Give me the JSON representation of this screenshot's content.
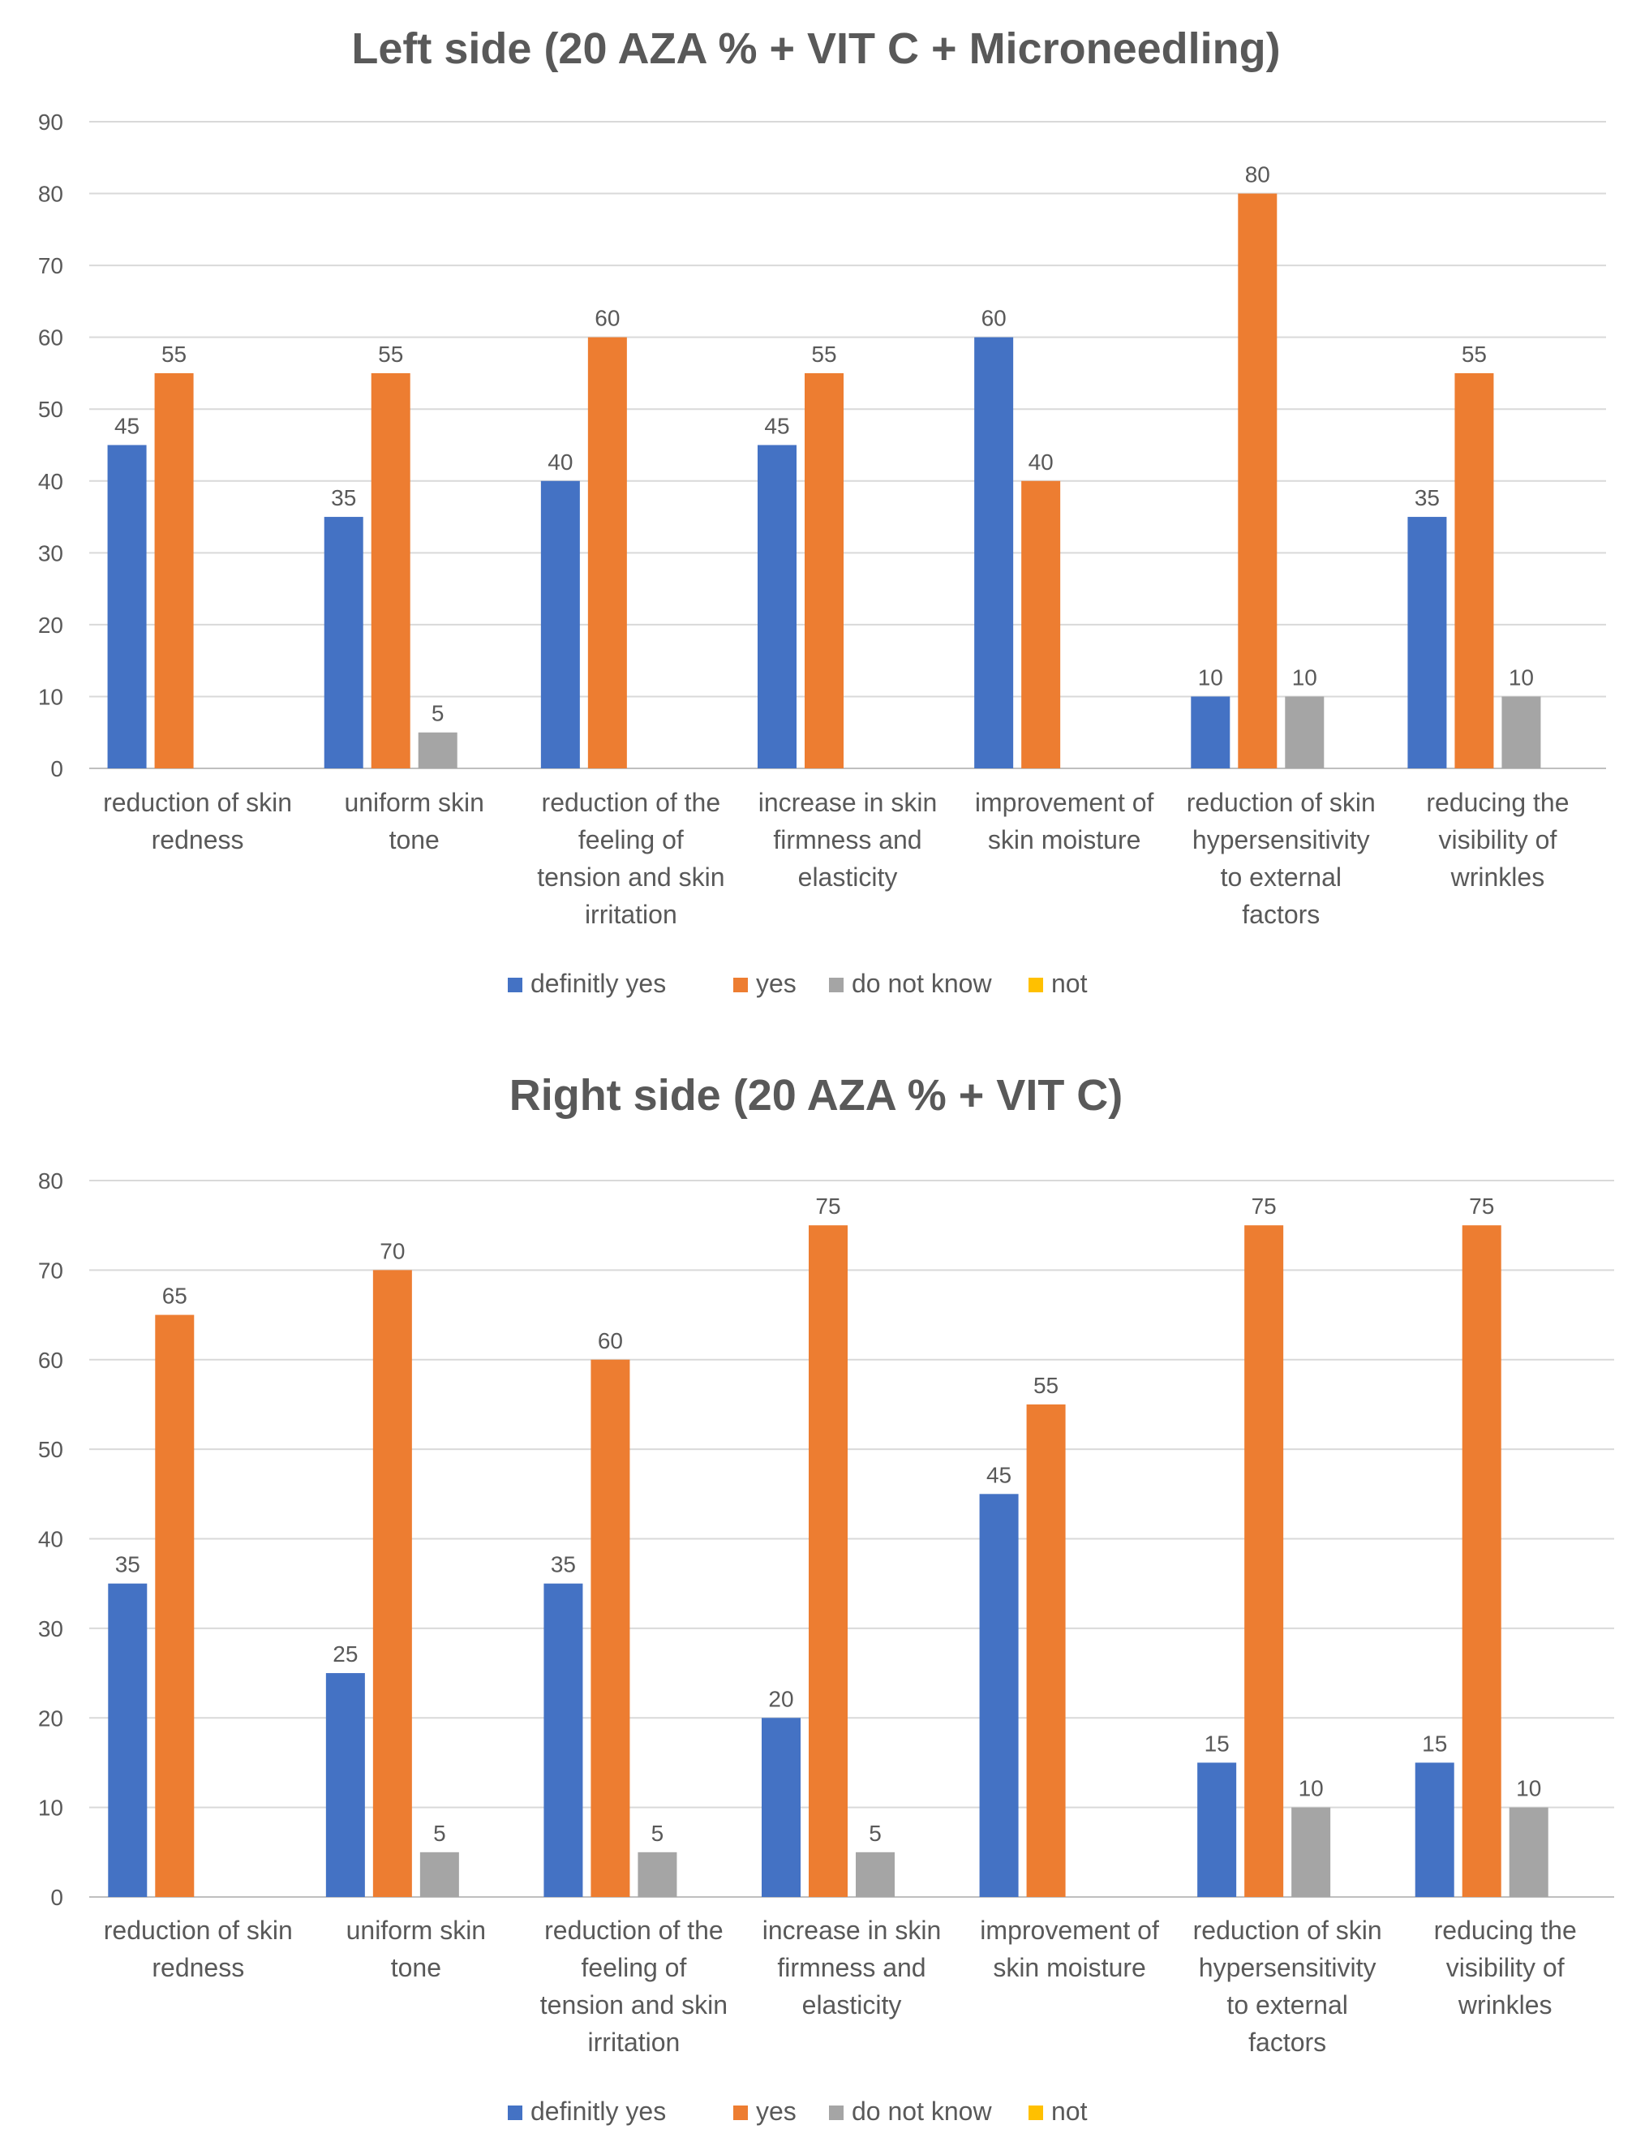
{
  "chart_data": [
    {
      "type": "bar",
      "title": "Left side (20 AZA % + VIT C + Microneedling)",
      "xlabel": "",
      "ylabel": "",
      "ylim": [
        0,
        90
      ],
      "yticks": [
        0,
        10,
        20,
        30,
        40,
        50,
        60,
        70,
        80,
        90
      ],
      "grid": true,
      "legend_position": "bottom",
      "categories": [
        [
          "reduction of skin",
          "redness"
        ],
        [
          "uniform skin",
          "tone"
        ],
        [
          "reduction of the",
          "feeling of",
          "tension and skin",
          "irritation"
        ],
        [
          "increase in  skin",
          "firmness and",
          "elasticity"
        ],
        [
          "improvement of",
          "skin moisture"
        ],
        [
          "reduction of skin",
          "hypersensitivity",
          "to external",
          "factors"
        ],
        [
          "reducing the",
          "visibility of",
          "wrinkles"
        ]
      ],
      "series": [
        {
          "name": "definitly yes",
          "color": "#4472C4",
          "values": [
            45,
            35,
            40,
            45,
            60,
            10,
            35
          ]
        },
        {
          "name": "yes",
          "color": "#ED7D31",
          "values": [
            55,
            55,
            60,
            55,
            40,
            80,
            55
          ]
        },
        {
          "name": "do not know",
          "color": "#A5A5A5",
          "values": [
            0,
            5,
            0,
            0,
            0,
            10,
            10
          ]
        },
        {
          "name": "not",
          "color": "#FFC000",
          "values": [
            0,
            0,
            0,
            0,
            0,
            0,
            0
          ]
        }
      ]
    },
    {
      "type": "bar",
      "title": "Right side (20 AZA % + VIT C)",
      "xlabel": "",
      "ylabel": "",
      "ylim": [
        0,
        80
      ],
      "yticks": [
        0,
        10,
        20,
        30,
        40,
        50,
        60,
        70,
        80
      ],
      "grid": true,
      "legend_position": "bottom",
      "categories": [
        [
          "reduction of skin",
          "redness"
        ],
        [
          "uniform skin",
          "tone"
        ],
        [
          "reduction of the",
          "feeling of",
          "tension and skin",
          "irritation"
        ],
        [
          "increase in  skin",
          "firmness and",
          "elasticity"
        ],
        [
          "improvement of",
          "skin moisture"
        ],
        [
          "reduction of skin",
          "hypersensitivity",
          "to external",
          "factors"
        ],
        [
          "reducing the",
          "visibility of",
          "wrinkles"
        ]
      ],
      "series": [
        {
          "name": "definitly yes",
          "color": "#4472C4",
          "values": [
            35,
            25,
            35,
            20,
            45,
            15,
            15
          ]
        },
        {
          "name": "yes",
          "color": "#ED7D31",
          "values": [
            65,
            70,
            60,
            75,
            55,
            75,
            75
          ]
        },
        {
          "name": "do not know",
          "color": "#A5A5A5",
          "values": [
            0,
            5,
            5,
            5,
            0,
            10,
            10
          ]
        },
        {
          "name": "not",
          "color": "#FFC000",
          "values": [
            0,
            0,
            0,
            0,
            0,
            0,
            0
          ]
        }
      ]
    }
  ]
}
